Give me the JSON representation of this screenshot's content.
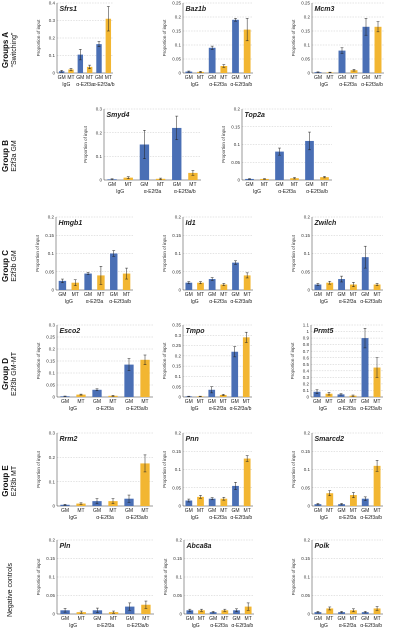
{
  "colors": {
    "GM": "#4a6fb5",
    "MT": "#f2b632"
  },
  "groups": [
    {
      "label": "Groups A",
      "sub": "“Switching”"
    },
    {
      "label": "Group B",
      "sub": "E2f3a GM"
    },
    {
      "label": "Group C",
      "sub": "E2f3b GM"
    },
    {
      "label": "Group D",
      "sub": "E2f3b GM-MT"
    },
    {
      "label": "Group E",
      "sub": "E2f3b MT"
    },
    {
      "label": "Negative controls",
      "sub": ""
    }
  ],
  "chart_data": [
    {
      "type": "bar",
      "group": 0,
      "title": "Sfrs1",
      "ylabel": "Proportion of input",
      "ylim": [
        0,
        0.4
      ],
      "yticks": [
        "0",
        "0.1",
        "0.2",
        "0.3",
        "0.4"
      ],
      "categories": [
        "IgG",
        "α-E2f3a",
        "α-E2f3a/b"
      ],
      "bar_labels": [
        "GM",
        "MT"
      ],
      "series": [
        {
          "name": "GM",
          "values": [
            0.01,
            0.105,
            0.165
          ],
          "errors": [
            0.005,
            0.03,
            0.015
          ]
        },
        {
          "name": "MT",
          "values": [
            0.02,
            0.035,
            0.31
          ],
          "errors": [
            0.006,
            0.01,
            0.07
          ]
        }
      ]
    },
    {
      "type": "bar",
      "group": 0,
      "title": "Baz1b",
      "ylabel": "Proportion of input",
      "ylim": [
        0,
        0.25
      ],
      "yticks": [
        "0",
        "0.05",
        "0.1",
        "0.15",
        "0.2",
        "0.25"
      ],
      "categories": [
        "IgG",
        "α-E2f3a",
        "α-E2f3a/b"
      ],
      "bar_labels": [
        "GM",
        "MT"
      ],
      "series": [
        {
          "name": "GM",
          "values": [
            0.005,
            0.09,
            0.19
          ],
          "errors": [
            0.002,
            0.006,
            0.005
          ]
        },
        {
          "name": "MT",
          "values": [
            0.004,
            0.025,
            0.155
          ],
          "errors": [
            0.002,
            0.005,
            0.04
          ]
        }
      ]
    },
    {
      "type": "bar",
      "group": 0,
      "title": "Mcm3",
      "ylabel": "Proportion of input",
      "ylim": [
        0,
        0.25
      ],
      "yticks": [
        "0",
        "0.05",
        "0.1",
        "0.15",
        "0.2",
        "0.25"
      ],
      "categories": [
        "IgG",
        "α-E2f3a",
        "α-E2f3a/b"
      ],
      "bar_labels": [
        "GM",
        "MT"
      ],
      "series": [
        {
          "name": "GM",
          "values": [
            0.003,
            0.08,
            0.165
          ],
          "errors": [
            0.001,
            0.01,
            0.03
          ]
        },
        {
          "name": "MT",
          "values": [
            0.002,
            0.01,
            0.165
          ],
          "errors": [
            0.001,
            0.003,
            0.018
          ]
        }
      ]
    },
    {
      "type": "bar",
      "group": 1,
      "title": "Smyd4",
      "ylabel": "Proportion of input",
      "ylim": [
        0,
        0.3
      ],
      "yticks": [
        "0",
        "0.1",
        "0.2",
        "0.3"
      ],
      "categories": [
        "IgG",
        "α-E2f3a",
        "α-E2f3a/b"
      ],
      "bar_labels": [
        "GM",
        "MT"
      ],
      "series": [
        {
          "name": "GM",
          "values": [
            0.003,
            0.15,
            0.22
          ],
          "errors": [
            0.002,
            0.06,
            0.05
          ]
        },
        {
          "name": "MT",
          "values": [
            0.01,
            0.005,
            0.03
          ],
          "errors": [
            0.004,
            0.003,
            0.01
          ]
        }
      ]
    },
    {
      "type": "bar",
      "group": 1,
      "title": "Top2a",
      "ylabel": "Proportion of input",
      "ylim": [
        0,
        0.2
      ],
      "yticks": [
        "0",
        "0.05",
        "0.1",
        "0.15",
        "0.2"
      ],
      "categories": [
        "IgG",
        "α-E2f3a",
        "α-E2f3a/b"
      ],
      "bar_labels": [
        "GM",
        "MT"
      ],
      "series": [
        {
          "name": "GM",
          "values": [
            0.003,
            0.08,
            0.11
          ],
          "errors": [
            0.001,
            0.01,
            0.025
          ]
        },
        {
          "name": "MT",
          "values": [
            0.003,
            0.005,
            0.008
          ],
          "errors": [
            0.001,
            0.002,
            0.002
          ]
        }
      ]
    },
    {
      "type": "bar",
      "group": 2,
      "title": "Hmgb1",
      "ylabel": "Proportion of input",
      "ylim": [
        0,
        0.2
      ],
      "yticks": [
        "0",
        "0.05",
        "0.1",
        "0.15",
        "0.2"
      ],
      "categories": [
        "IgG",
        "α-E2f3a",
        "α-E2f3a/b"
      ],
      "bar_labels": [
        "GM",
        "MT"
      ],
      "series": [
        {
          "name": "GM",
          "values": [
            0.025,
            0.045,
            0.1
          ],
          "errors": [
            0.005,
            0.003,
            0.008
          ]
        },
        {
          "name": "MT",
          "values": [
            0.02,
            0.04,
            0.045
          ],
          "errors": [
            0.008,
            0.025,
            0.015
          ]
        }
      ]
    },
    {
      "type": "bar",
      "group": 2,
      "title": "Id1",
      "ylabel": "Proportion of input",
      "ylim": [
        0,
        0.2
      ],
      "yticks": [
        "0",
        "0.05",
        "0.1",
        "0.15",
        "0.2"
      ],
      "categories": [
        "IgG",
        "α-E2f3a",
        "α-E2f3a/b"
      ],
      "bar_labels": [
        "GM",
        "MT"
      ],
      "series": [
        {
          "name": "GM",
          "values": [
            0.02,
            0.03,
            0.075
          ],
          "errors": [
            0.003,
            0.004,
            0.005
          ]
        },
        {
          "name": "MT",
          "values": [
            0.02,
            0.015,
            0.04
          ],
          "errors": [
            0.003,
            0.003,
            0.007
          ]
        }
      ]
    },
    {
      "type": "bar",
      "group": 2,
      "title": "Zwilch",
      "ylabel": "Proportion of input",
      "ylim": [
        0,
        0.2
      ],
      "yticks": [
        "0",
        "0.05",
        "0.1",
        "0.15",
        "0.2"
      ],
      "categories": [
        "IgG",
        "α-E2f3a",
        "α-E2f3a/b"
      ],
      "bar_labels": [
        "GM",
        "MT"
      ],
      "series": [
        {
          "name": "GM",
          "values": [
            0.015,
            0.03,
            0.09
          ],
          "errors": [
            0.003,
            0.008,
            0.03
          ]
        },
        {
          "name": "MT",
          "values": [
            0.02,
            0.015,
            0.015
          ],
          "errors": [
            0.004,
            0.006,
            0.003
          ]
        }
      ]
    },
    {
      "type": "bar",
      "group": 3,
      "title": "Esco2",
      "ylabel": "Proportion of input",
      "ylim": [
        0,
        0.3
      ],
      "yticks": [
        "0",
        "0.05",
        "0.1",
        "0.15",
        "0.2",
        "0.25",
        "0.3"
      ],
      "categories": [
        "IgG",
        "α-E2f3a",
        "α-E2f3a/b"
      ],
      "bar_labels": [
        "GM",
        "MT"
      ],
      "series": [
        {
          "name": "GM",
          "values": [
            0.003,
            0.03,
            0.135
          ],
          "errors": [
            0.001,
            0.004,
            0.025
          ]
        },
        {
          "name": "MT",
          "values": [
            0.01,
            0.005,
            0.155
          ],
          "errors": [
            0.002,
            0.002,
            0.02
          ]
        }
      ]
    },
    {
      "type": "bar",
      "group": 3,
      "title": "Tmpo",
      "ylabel": "Proportion of input",
      "ylim": [
        0,
        0.35
      ],
      "yticks": [
        "0",
        "0.05",
        "0.1",
        "0.15",
        "0.2",
        "0.25",
        "0.3",
        "0.35"
      ],
      "categories": [
        "IgG",
        "α-E2f3a",
        "α-E2f3a/b"
      ],
      "bar_labels": [
        "GM",
        "MT"
      ],
      "series": [
        {
          "name": "GM",
          "values": [
            0.003,
            0.035,
            0.22
          ],
          "errors": [
            0.001,
            0.015,
            0.025
          ]
        },
        {
          "name": "MT",
          "values": [
            0.003,
            0.01,
            0.29
          ],
          "errors": [
            0.001,
            0.003,
            0.025
          ]
        }
      ]
    },
    {
      "type": "bar",
      "group": 3,
      "title": "Prmt5",
      "ylabel": "Proportion of input",
      "ylim": [
        0,
        1.1
      ],
      "yticks": [
        "0",
        "0.1",
        "0.2",
        "0.3",
        "0.4",
        "0.5",
        "0.6",
        "0.7",
        "0.8",
        "0.9",
        "1",
        "1.1"
      ],
      "categories": [
        "IgG",
        "α-E2f3a",
        "α-E2f3a/b"
      ],
      "bar_labels": [
        "GM",
        "MT"
      ],
      "series": [
        {
          "name": "GM",
          "values": [
            0.08,
            0.04,
            0.9
          ],
          "errors": [
            0.03,
            0.01,
            0.15
          ]
        },
        {
          "name": "MT",
          "values": [
            0.05,
            0.02,
            0.45
          ],
          "errors": [
            0.02,
            0.01,
            0.15
          ]
        }
      ]
    },
    {
      "type": "bar",
      "group": 4,
      "title": "Rrm2",
      "ylabel": "Proportion of input",
      "ylim": [
        0,
        0.3
      ],
      "yticks": [
        "0",
        "0.1",
        "0.2",
        "0.3"
      ],
      "categories": [
        "IgG",
        "α-E2f3a",
        "α-E2f3a/b"
      ],
      "bar_labels": [
        "GM",
        "MT"
      ],
      "series": [
        {
          "name": "GM",
          "values": [
            0.005,
            0.02,
            0.03
          ],
          "errors": [
            0.002,
            0.01,
            0.015
          ]
        },
        {
          "name": "MT",
          "values": [
            0.01,
            0.02,
            0.175
          ],
          "errors": [
            0.003,
            0.01,
            0.035
          ]
        }
      ]
    },
    {
      "type": "bar",
      "group": 4,
      "title": "Pnn",
      "ylabel": "Proportion of input",
      "ylim": [
        0,
        0.2
      ],
      "yticks": [
        "0",
        "0.05",
        "0.1",
        "0.15",
        "0.2"
      ],
      "categories": [
        "IgG",
        "α-E2f3a",
        "α-E2f3a/b"
      ],
      "bar_labels": [
        "GM",
        "MT"
      ],
      "series": [
        {
          "name": "GM",
          "values": [
            0.015,
            0.02,
            0.055
          ],
          "errors": [
            0.004,
            0.003,
            0.01
          ]
        },
        {
          "name": "MT",
          "values": [
            0.025,
            0.02,
            0.13
          ],
          "errors": [
            0.004,
            0.004,
            0.008
          ]
        }
      ]
    },
    {
      "type": "bar",
      "group": 4,
      "title": "Smarcd2",
      "ylabel": "Proportion of input",
      "ylim": [
        0,
        0.2
      ],
      "yticks": [
        "0",
        "0.05",
        "0.1",
        "0.15",
        "0.2"
      ],
      "categories": [
        "IgG",
        "α-E2f3a",
        "α-E2f3a/b"
      ],
      "bar_labels": [
        "GM",
        "MT"
      ],
      "series": [
        {
          "name": "GM",
          "values": [
            0.005,
            0.005,
            0.02
          ],
          "errors": [
            0.002,
            0.002,
            0.005
          ]
        },
        {
          "name": "MT",
          "values": [
            0.035,
            0.03,
            0.11
          ],
          "errors": [
            0.007,
            0.007,
            0.015
          ]
        }
      ]
    },
    {
      "type": "bar",
      "group": 5,
      "title": "Pln",
      "ylabel": "Proportion of input",
      "ylim": [
        0,
        0.2
      ],
      "yticks": [
        "0",
        "0.05",
        "0.1",
        "0.15",
        "0.2"
      ],
      "categories": [
        "IgG",
        "α-E2f3a",
        "α-E2f3a/b"
      ],
      "bar_labels": [
        "GM",
        "MT"
      ],
      "series": [
        {
          "name": "GM",
          "values": [
            0.01,
            0.01,
            0.02
          ],
          "errors": [
            0.005,
            0.006,
            0.01
          ]
        },
        {
          "name": "MT",
          "values": [
            0.005,
            0.005,
            0.025
          ],
          "errors": [
            0.003,
            0.003,
            0.01
          ]
        }
      ]
    },
    {
      "type": "bar",
      "group": 5,
      "title": "Abca8a",
      "ylabel": "Proportion of input",
      "ylim": [
        0,
        0.2
      ],
      "yticks": [
        "0",
        "0.05",
        "0.1",
        "0.15",
        "0.2"
      ],
      "categories": [
        "IgG",
        "α-E2f3a",
        "α-E2f3a/b"
      ],
      "bar_labels": [
        "GM",
        "MT"
      ],
      "series": [
        {
          "name": "GM",
          "values": [
            0.01,
            0.005,
            0.01
          ],
          "errors": [
            0.003,
            0.002,
            0.004
          ]
        },
        {
          "name": "MT",
          "values": [
            0.01,
            0.01,
            0.02
          ],
          "errors": [
            0.003,
            0.003,
            0.01
          ]
        }
      ]
    },
    {
      "type": "bar",
      "group": 5,
      "title": "Polk",
      "ylabel": "Proportion of input",
      "ylim": [
        0,
        0.2
      ],
      "yticks": [
        "0",
        "0.05",
        "0.1",
        "0.15",
        "0.2"
      ],
      "categories": [
        "IgG",
        "α-E2f3a",
        "α-E2f3a/b"
      ],
      "bar_labels": [
        "GM",
        "MT"
      ],
      "series": [
        {
          "name": "GM",
          "values": [
            0.005,
            0.005,
            0.005
          ],
          "errors": [
            0.002,
            0.002,
            0.002
          ]
        },
        {
          "name": "MT",
          "values": [
            0.015,
            0.01,
            0.015
          ],
          "errors": [
            0.004,
            0.004,
            0.005
          ]
        }
      ]
    }
  ]
}
